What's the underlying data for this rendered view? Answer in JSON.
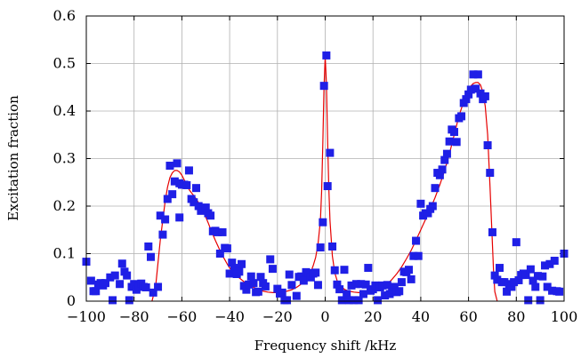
{
  "chart_data": {
    "type": "scatter",
    "xlabel": "Frequency shift /kHz",
    "ylabel": "Excitation fraction",
    "xlim": [
      -100,
      100
    ],
    "ylim": [
      0,
      0.6
    ],
    "x_ticks": [
      -100,
      -80,
      -60,
      -40,
      -20,
      0,
      20,
      40,
      60,
      80,
      100
    ],
    "x_tick_labels": [
      "−100",
      "−80",
      "−60",
      "−40",
      "−20",
      "0",
      "20",
      "40",
      "60",
      "80",
      "100"
    ],
    "y_ticks": [
      0,
      0.1,
      0.2,
      0.3,
      0.4,
      0.5,
      0.6
    ],
    "y_tick_labels": [
      "0",
      "0.1",
      "0.2",
      "0.3",
      "0.4",
      "0.5",
      "0.6"
    ],
    "grid": true,
    "legend": false,
    "colors": {
      "points": "#1f1fe6",
      "fit": "#e60000",
      "grid": "#b0b0b0"
    },
    "series": [
      {
        "kind": "markers",
        "marker": "square",
        "points": [
          [
            -100,
            0.083
          ],
          [
            -98,
            0.043
          ],
          [
            -97,
            0.021
          ],
          [
            -96,
            0.021
          ],
          [
            -95,
            0.035
          ],
          [
            -94,
            0.038
          ],
          [
            -93,
            0.033
          ],
          [
            -92,
            0.038
          ],
          [
            -90,
            0.05
          ],
          [
            -89,
            0.002
          ],
          [
            -88,
            0.054
          ],
          [
            -86,
            0.036
          ],
          [
            -85,
            0.079
          ],
          [
            -84,
            0.062
          ],
          [
            -83,
            0.054
          ],
          [
            -82,
            0.002
          ],
          [
            -81,
            0.03
          ],
          [
            -80,
            0.036
          ],
          [
            -79,
            0.024
          ],
          [
            -78,
            0.032
          ],
          [
            -77,
            0.037
          ],
          [
            -76,
            0.03
          ],
          [
            -75,
            0.029
          ],
          [
            -74,
            0.115
          ],
          [
            -73,
            0.093
          ],
          [
            -72,
            0.018
          ],
          [
            -70,
            0.03
          ],
          [
            -69,
            0.18
          ],
          [
            -68,
            0.14
          ],
          [
            -67,
            0.172
          ],
          [
            -66,
            0.215
          ],
          [
            -65,
            0.285
          ],
          [
            -64,
            0.225
          ],
          [
            -63,
            0.252
          ],
          [
            -62,
            0.29
          ],
          [
            -61,
            0.248
          ],
          [
            -61,
            0.176
          ],
          [
            -60,
            0.245
          ],
          [
            -59,
            0.245
          ],
          [
            -58,
            0.244
          ],
          [
            -57,
            0.275
          ],
          [
            -56,
            0.215
          ],
          [
            -55,
            0.208
          ],
          [
            -54,
            0.238
          ],
          [
            -53,
            0.2
          ],
          [
            -52,
            0.19
          ],
          [
            -51,
            0.193
          ],
          [
            -50,
            0.197
          ],
          [
            -49,
            0.185
          ],
          [
            -48,
            0.18
          ],
          [
            -47,
            0.147
          ],
          [
            -46,
            0.148
          ],
          [
            -45,
            0.145
          ],
          [
            -44,
            0.1
          ],
          [
            -43,
            0.145
          ],
          [
            -42,
            0.112
          ],
          [
            -41,
            0.111
          ],
          [
            -40,
            0.058
          ],
          [
            -39,
            0.081
          ],
          [
            -38,
            0.07
          ],
          [
            -37,
            0.057
          ],
          [
            -36,
            0.062
          ],
          [
            -35,
            0.078
          ],
          [
            -34,
            0.032
          ],
          [
            -33,
            0.024
          ],
          [
            -32,
            0.035
          ],
          [
            -31,
            0.052
          ],
          [
            -30,
            0.038
          ],
          [
            -29,
            0.019
          ],
          [
            -28,
            0.02
          ],
          [
            -27,
            0.051
          ],
          [
            -26,
            0.038
          ],
          [
            -25,
            0.031
          ],
          [
            -23,
            0.088
          ],
          [
            -22,
            0.068
          ],
          [
            -20,
            0.026
          ],
          [
            -19,
            0.016
          ],
          [
            -18,
            0.018
          ],
          [
            -17,
            0.002
          ],
          [
            -16,
            0.002
          ],
          [
            -15,
            0.056
          ],
          [
            -14,
            0.034
          ],
          [
            -12,
            0.011
          ],
          [
            -11,
            0.051
          ],
          [
            -10,
            0.052
          ],
          [
            -9,
            0.043
          ],
          [
            -8,
            0.061
          ],
          [
            -7,
            0.059
          ],
          [
            -6,
            0.05
          ],
          [
            -5,
            0.058
          ],
          [
            -4,
            0.06
          ],
          [
            -3,
            0.034
          ],
          [
            -2,
            0.113
          ],
          [
            -1,
            0.166
          ],
          [
            -0.5,
            0.453
          ],
          [
            0.5,
            0.517
          ],
          [
            1,
            0.242
          ],
          [
            2,
            0.312
          ],
          [
            3,
            0.115
          ],
          [
            4,
            0.065
          ],
          [
            5,
            0.035
          ],
          [
            6,
            0.025
          ],
          [
            7,
            0.002
          ],
          [
            8,
            0.066
          ],
          [
            9,
            0.015
          ],
          [
            10,
            0.002
          ],
          [
            11,
            0.033
          ],
          [
            12,
            0.002
          ],
          [
            13,
            0.036
          ],
          [
            14,
            0.002
          ],
          [
            15,
            0.036
          ],
          [
            16,
            0.015
          ],
          [
            17,
            0.035
          ],
          [
            18,
            0.07
          ],
          [
            19,
            0.022
          ],
          [
            20,
            0.025
          ],
          [
            21,
            0.033
          ],
          [
            22,
            0.002
          ],
          [
            23,
            0.029
          ],
          [
            24,
            0.033
          ],
          [
            25,
            0.012
          ],
          [
            26,
            0.034
          ],
          [
            27,
            0.015
          ],
          [
            28,
            0.025
          ],
          [
            29,
            0.03
          ],
          [
            30,
            0.019
          ],
          [
            31,
            0.021
          ],
          [
            32,
            0.04
          ],
          [
            33,
            0.062
          ],
          [
            34,
            0.061
          ],
          [
            35,
            0.066
          ],
          [
            36,
            0.046
          ],
          [
            37,
            0.095
          ],
          [
            38,
            0.127
          ],
          [
            39,
            0.095
          ],
          [
            40,
            0.205
          ],
          [
            41,
            0.18
          ],
          [
            42,
            0.185
          ],
          [
            43,
            0.185
          ],
          [
            44,
            0.194
          ],
          [
            45,
            0.2
          ],
          [
            46,
            0.238
          ],
          [
            47,
            0.27
          ],
          [
            48,
            0.265
          ],
          [
            49,
            0.277
          ],
          [
            50,
            0.297
          ],
          [
            51,
            0.31
          ],
          [
            52,
            0.336
          ],
          [
            53,
            0.361
          ],
          [
            54,
            0.356
          ],
          [
            55,
            0.335
          ],
          [
            56,
            0.385
          ],
          [
            57,
            0.389
          ],
          [
            58,
            0.417
          ],
          [
            59,
            0.425
          ],
          [
            60,
            0.435
          ],
          [
            61,
            0.445
          ],
          [
            62,
            0.477
          ],
          [
            63,
            0.447
          ],
          [
            64,
            0.477
          ],
          [
            65,
            0.437
          ],
          [
            66,
            0.425
          ],
          [
            67,
            0.431
          ],
          [
            68,
            0.328
          ],
          [
            69,
            0.27
          ],
          [
            70,
            0.145
          ],
          [
            71,
            0.054
          ],
          [
            72,
            0.045
          ],
          [
            73,
            0.07
          ],
          [
            74,
            0.04
          ],
          [
            75,
            0.04
          ],
          [
            76,
            0.02
          ],
          [
            77,
            0.036
          ],
          [
            78,
            0.03
          ],
          [
            79,
            0.04
          ],
          [
            80,
            0.124
          ],
          [
            81,
            0.044
          ],
          [
            82,
            0.055
          ],
          [
            83,
            0.058
          ],
          [
            84,
            0.055
          ],
          [
            85,
            0.002
          ],
          [
            86,
            0.067
          ],
          [
            87,
            0.043
          ],
          [
            88,
            0.03
          ],
          [
            89,
            0.053
          ],
          [
            90,
            0.002
          ],
          [
            91,
            0.052
          ],
          [
            92,
            0.075
          ],
          [
            93,
            0.03
          ],
          [
            94,
            0.078
          ],
          [
            95,
            0.022
          ],
          [
            96,
            0.085
          ],
          [
            97,
            0.021
          ],
          [
            98,
            0.02
          ],
          [
            100,
            0.1
          ]
        ]
      },
      {
        "kind": "line",
        "x": [
          -72.5,
          -71,
          -70,
          -69,
          -68,
          -67,
          -66,
          -65,
          -64,
          -63,
          -62,
          -61,
          -60,
          -59,
          -58,
          -57,
          -56,
          -55,
          -54,
          -53,
          -52,
          -51,
          -50,
          -49,
          -48,
          -47,
          -46,
          -45,
          -44,
          -43,
          -42,
          -41,
          -40,
          -38,
          -36,
          -34,
          -32,
          -30,
          -28,
          -26,
          -24,
          -22,
          -20,
          -18,
          -16,
          -14,
          -12,
          -10,
          -8,
          -6,
          -5,
          -4,
          -3,
          -2,
          -1.5,
          -1,
          -0.5,
          0,
          0.5,
          1,
          1.5,
          2,
          3,
          4,
          5,
          6,
          8,
          10,
          12,
          14,
          16,
          18,
          20,
          22,
          24,
          26,
          28,
          30,
          32,
          34,
          36,
          38,
          40,
          42,
          44,
          46,
          48,
          50,
          52,
          54,
          56,
          58,
          60,
          61,
          62,
          63,
          64,
          65,
          66,
          67,
          68,
          69,
          70,
          70.5,
          71,
          72
        ],
        "y": [
          0.0,
          0.03,
          0.08,
          0.13,
          0.17,
          0.21,
          0.24,
          0.26,
          0.27,
          0.275,
          0.275,
          0.272,
          0.265,
          0.255,
          0.245,
          0.235,
          0.228,
          0.222,
          0.215,
          0.207,
          0.198,
          0.188,
          0.177,
          0.165,
          0.152,
          0.14,
          0.128,
          0.117,
          0.106,
          0.096,
          0.087,
          0.078,
          0.07,
          0.058,
          0.049,
          0.041,
          0.034,
          0.029,
          0.025,
          0.021,
          0.019,
          0.018,
          0.018,
          0.019,
          0.021,
          0.024,
          0.029,
          0.036,
          0.046,
          0.062,
          0.075,
          0.092,
          0.12,
          0.17,
          0.23,
          0.33,
          0.45,
          0.515,
          0.46,
          0.34,
          0.24,
          0.17,
          0.095,
          0.06,
          0.043,
          0.034,
          0.025,
          0.021,
          0.019,
          0.018,
          0.018,
          0.019,
          0.021,
          0.024,
          0.029,
          0.036,
          0.046,
          0.058,
          0.072,
          0.089,
          0.107,
          0.128,
          0.15,
          0.172,
          0.194,
          0.218,
          0.245,
          0.275,
          0.31,
          0.35,
          0.39,
          0.42,
          0.445,
          0.453,
          0.458,
          0.46,
          0.46,
          0.455,
          0.44,
          0.41,
          0.35,
          0.24,
          0.12,
          0.06,
          0.02,
          0.0
        ]
      }
    ]
  }
}
